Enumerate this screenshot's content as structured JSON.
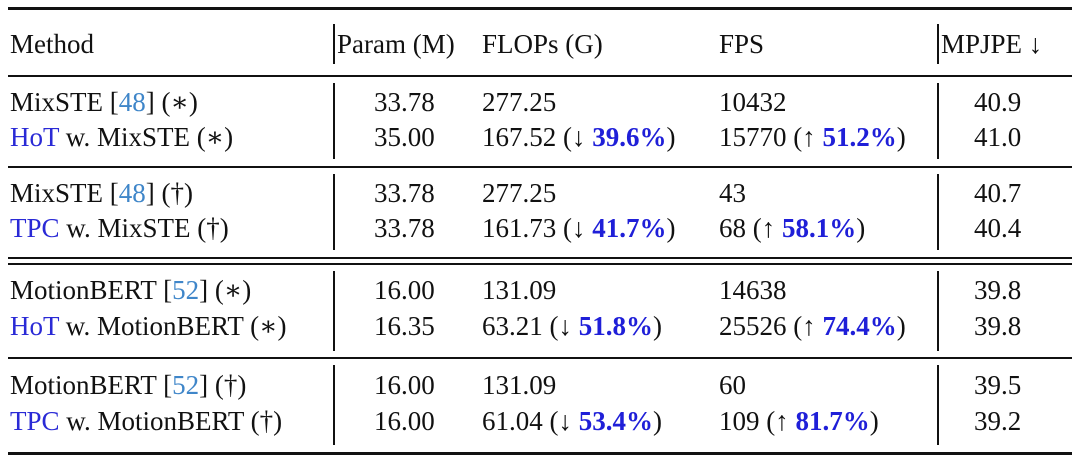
{
  "columns": {
    "method": "Method",
    "param": "Param (M)",
    "flops": "FLOPs (G)",
    "fps": "FPS",
    "mpjpe": "MPJPE ↓"
  },
  "rows": [
    {
      "method_base": "MixSTE [",
      "method_ref": "48",
      "method_suffix": "] (∗)",
      "param": "33.78",
      "flops": "277.25",
      "fps": "10432",
      "mpjpe": "40.9"
    },
    {
      "method_tag": "HoT",
      "method_rest": " w. MixSTE (∗)",
      "param": "35.00",
      "flops": "167.52",
      "flops_arrow": "(↓ ",
      "flops_pct": "39.6%",
      "flops_close": ")",
      "fps": "15770",
      "fps_arrow": "(↑ ",
      "fps_pct": "51.2%",
      "fps_close": ")",
      "mpjpe": "41.0"
    },
    {
      "method_base": "MixSTE [",
      "method_ref": "48",
      "method_suffix": "] (†)",
      "param": "33.78",
      "flops": "277.25",
      "fps": "43",
      "mpjpe": "40.7"
    },
    {
      "method_tag": "TPC",
      "method_rest": " w. MixSTE (†)",
      "param": "33.78",
      "flops": "161.73",
      "flops_arrow": "(↓ ",
      "flops_pct": "41.7%",
      "flops_close": ")",
      "fps": "68",
      "fps_arrow": "(↑ ",
      "fps_pct": "58.1%",
      "fps_close": ")",
      "mpjpe": "40.4"
    },
    {
      "method_base": "MotionBERT [",
      "method_ref": "52",
      "method_suffix": "] (∗)",
      "param": "16.00",
      "flops": "131.09",
      "fps": "14638",
      "mpjpe": "39.8"
    },
    {
      "method_tag": "HoT",
      "method_rest": " w. MotionBERT (∗)",
      "param": "16.35",
      "flops": "63.21",
      "flops_arrow": "(↓ ",
      "flops_pct": "51.8%",
      "flops_close": ")",
      "fps": "25526",
      "fps_arrow": "(↑ ",
      "fps_pct": "74.4%",
      "fps_close": ")",
      "mpjpe": "39.8"
    },
    {
      "method_base": "MotionBERT [",
      "method_ref": "52",
      "method_suffix": "] (†)",
      "param": "16.00",
      "flops": "131.09",
      "fps": "60",
      "mpjpe": "39.5"
    },
    {
      "method_tag": "TPC",
      "method_rest": " w. MotionBERT (†)",
      "param": "16.00",
      "flops": "61.04",
      "flops_arrow": "(↓ ",
      "flops_pct": "53.4%",
      "flops_close": ")",
      "fps": "109",
      "fps_arrow": "(↑ ",
      "fps_pct": "81.7%",
      "fps_close": ")",
      "mpjpe": "39.2"
    }
  ]
}
